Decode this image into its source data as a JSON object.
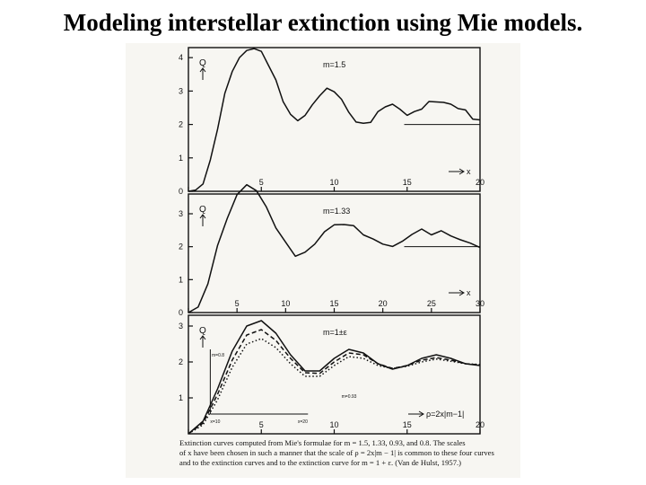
{
  "slide": {
    "title": "Modeling interstellar extinction using Mie models."
  },
  "figure": {
    "caption_lines": [
      "Extinction curves computed from Mie's formulae for m = 1.5, 1.33, 0.93, and 0.8. The scales",
      "of x have been chosen in such a manner that the scale of ρ = 2x|m − 1| is common to these four curves",
      "and to the extinction curves and to the extinction curve for m = 1 + ε. (Van de Hulst, 1957.)"
    ]
  },
  "colors": {
    "ink": "#111111",
    "paper": "#f7f6f2"
  },
  "chart_data": [
    {
      "type": "line",
      "title": "m=1.5",
      "ylabel": "Q",
      "xlabel": "x",
      "xlim": [
        0,
        20
      ],
      "ylim": [
        0,
        4.3
      ],
      "xticks": [
        0,
        5,
        10,
        15,
        20
      ],
      "yticks": [
        0,
        1,
        2,
        3,
        4
      ],
      "series": [
        {
          "style": "solid",
          "x": [
            0,
            0.5,
            1,
            1.5,
            2,
            2.5,
            3,
            3.5,
            4,
            4.5,
            5,
            5.5,
            6,
            6.5,
            7,
            7.5,
            8,
            8.5,
            9,
            9.5,
            10,
            10.5,
            11,
            11.5,
            12,
            12.5,
            13,
            13.5,
            14,
            14.5,
            15,
            15.5,
            16,
            16.5,
            17,
            17.5,
            18,
            18.5,
            19,
            19.5,
            20
          ],
          "values": [
            0,
            0.02,
            0.25,
            0.9,
            1.9,
            2.9,
            3.6,
            4.0,
            4.2,
            4.3,
            4.15,
            3.8,
            3.3,
            2.7,
            2.3,
            2.1,
            2.3,
            2.55,
            2.9,
            3.05,
            3.0,
            2.75,
            2.35,
            2.1,
            2.0,
            2.1,
            2.35,
            2.55,
            2.6,
            2.45,
            2.3,
            2.35,
            2.5,
            2.65,
            2.7,
            2.65,
            2.6,
            2.5,
            2.4,
            2.2,
            2.1
          ]
        }
      ],
      "reference_level": 2
    },
    {
      "type": "line",
      "title": "m=1.33",
      "ylabel": "Q",
      "xlabel": "x",
      "xlim": [
        0,
        30
      ],
      "ylim": [
        0,
        3.6
      ],
      "xticks": [
        0,
        5,
        10,
        15,
        20,
        25,
        30
      ],
      "yticks": [
        0,
        1,
        2,
        3
      ],
      "series": [
        {
          "style": "solid",
          "x": [
            0,
            1,
            2,
            3,
            4,
            5,
            6,
            7,
            8,
            9,
            10,
            11,
            12,
            13,
            14,
            15,
            16,
            17,
            18,
            19,
            20,
            21,
            22,
            23,
            24,
            25,
            26,
            27,
            28,
            29,
            30
          ],
          "values": [
            0,
            0.15,
            0.9,
            2.0,
            2.9,
            3.55,
            3.9,
            3.7,
            3.2,
            2.6,
            2.1,
            1.75,
            1.8,
            2.1,
            2.45,
            2.65,
            2.7,
            2.6,
            2.4,
            2.2,
            2.1,
            2.0,
            2.15,
            2.4,
            2.5,
            2.4,
            2.45,
            2.35,
            2.2,
            2.1,
            2.0
          ]
        }
      ],
      "reference_level": 2
    },
    {
      "type": "line",
      "title": "m=1±ε",
      "ylabel": "Q",
      "xlabel": "ρ=2x|m−1|",
      "xlim": [
        0,
        20
      ],
      "ylim": [
        0,
        3.3
      ],
      "xticks": [
        0,
        5,
        10,
        15,
        20
      ],
      "yticks": [
        1,
        2,
        3
      ],
      "annotations": [
        "m=0.8",
        "m=0.93",
        "x=10",
        "x=20"
      ],
      "series": [
        {
          "style": "solid",
          "x": [
            0,
            1,
            2,
            3,
            4,
            5,
            6,
            7,
            8,
            9,
            10,
            11,
            12,
            13,
            14,
            15,
            16,
            17,
            18,
            19,
            20
          ],
          "values": [
            0,
            0.35,
            1.25,
            2.3,
            3.0,
            3.15,
            2.8,
            2.2,
            1.75,
            1.75,
            2.1,
            2.35,
            2.25,
            1.95,
            1.8,
            1.9,
            2.1,
            2.2,
            2.1,
            1.95,
            1.9
          ]
        },
        {
          "style": "dashed",
          "x": [
            0,
            1,
            2,
            3,
            4,
            5,
            6,
            7,
            8,
            9,
            10,
            11,
            12,
            13,
            14,
            15,
            16,
            17,
            18,
            19,
            20
          ],
          "values": [
            0,
            0.3,
            1.1,
            2.05,
            2.75,
            2.9,
            2.6,
            2.1,
            1.7,
            1.68,
            2.0,
            2.25,
            2.2,
            1.95,
            1.82,
            1.9,
            2.05,
            2.12,
            2.05,
            1.95,
            1.92
          ]
        },
        {
          "style": "dotted",
          "x": [
            0,
            1,
            2,
            3,
            4,
            5,
            6,
            7,
            8,
            9,
            10,
            11,
            12,
            13,
            14,
            15,
            16,
            17,
            18,
            19,
            20
          ],
          "values": [
            0,
            0.25,
            0.95,
            1.85,
            2.5,
            2.65,
            2.4,
            1.95,
            1.6,
            1.6,
            1.9,
            2.15,
            2.1,
            1.9,
            1.82,
            1.88,
            2.0,
            2.08,
            2.02,
            1.95,
            1.93
          ]
        }
      ]
    }
  ]
}
